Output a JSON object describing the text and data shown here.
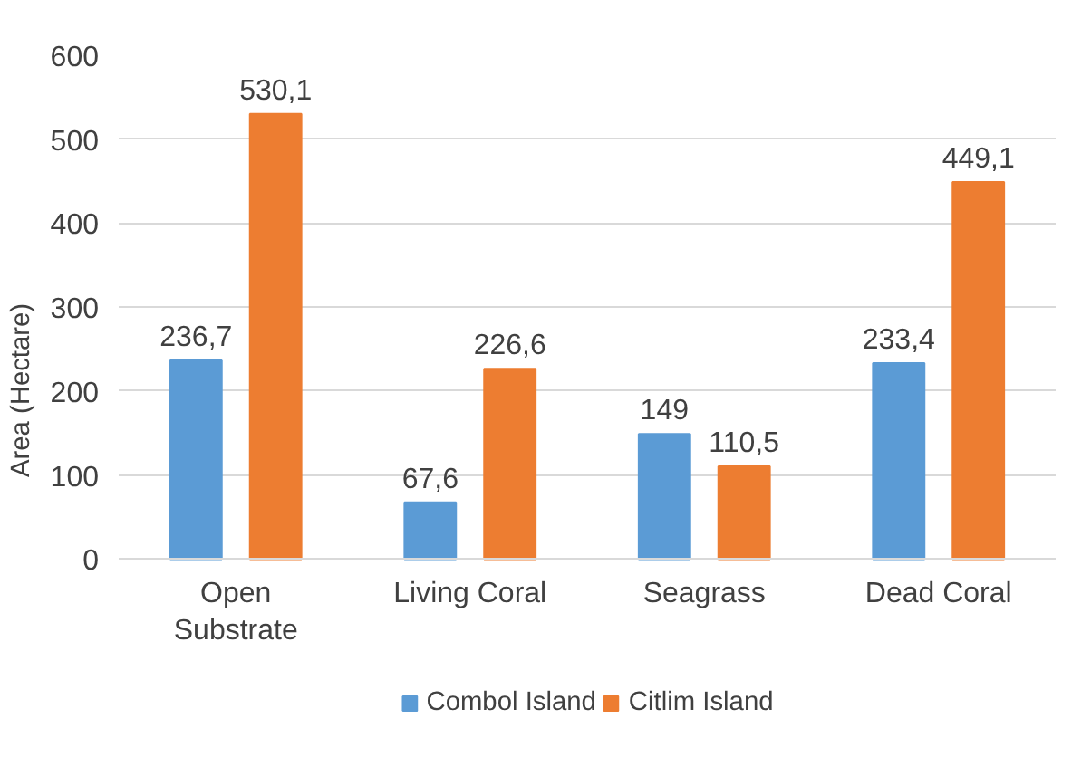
{
  "chart_data": {
    "type": "bar",
    "ylabel": "Area (Hectare)",
    "categories": [
      "Open Substrate",
      "Living Coral",
      "Seagrass",
      "Dead Coral"
    ],
    "series": [
      {
        "name": "Combol Island",
        "color": "#5b9bd5",
        "values": [
          236.7,
          67.6,
          149,
          233.4
        ],
        "value_labels": [
          "236,7",
          "67,6",
          "149",
          "233,4"
        ]
      },
      {
        "name": "Citlim Island",
        "color": "#ed7d31",
        "values": [
          530.1,
          226.6,
          110.5,
          449.1
        ],
        "value_labels": [
          "530,1",
          "226,6",
          "110,5",
          "449,1"
        ]
      }
    ],
    "ylim": [
      0,
      600
    ],
    "yticks": [
      0,
      100,
      200,
      300,
      400,
      500,
      600
    ],
    "grid": "y",
    "legend": "bottom"
  }
}
